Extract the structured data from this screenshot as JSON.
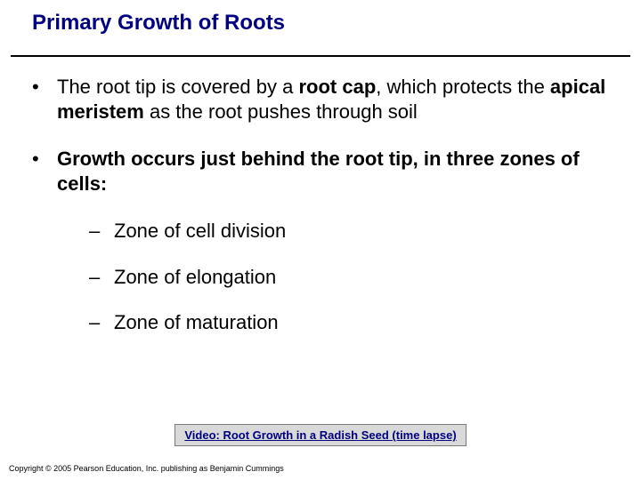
{
  "title": "Primary Growth of Roots",
  "title_color": "#000080",
  "rule_color": "#000000",
  "bullets": [
    {
      "segments": [
        {
          "text": "The root tip is covered by a ",
          "bold": false
        },
        {
          "text": "root cap",
          "bold": true
        },
        {
          "text": ", which protects the ",
          "bold": false
        },
        {
          "text": "apical meristem",
          "bold": true
        },
        {
          "text": " as the root pushes through soil",
          "bold": false
        }
      ]
    },
    {
      "segments": [
        {
          "text": "Growth occurs just behind the root tip, in three zones of cells:",
          "bold": true
        }
      ]
    }
  ],
  "sublist": [
    "Zone of cell division",
    "Zone of elongation",
    "Zone of maturation"
  ],
  "video_link": {
    "label": "Video: Root Growth in a Radish Seed (time lapse)",
    "bg_color": "#d9d9d9",
    "border_color": "#7a7a7a",
    "text_color": "#000080"
  },
  "copyright": "Copyright © 2005 Pearson Education, Inc. publishing as Benjamin Cummings"
}
